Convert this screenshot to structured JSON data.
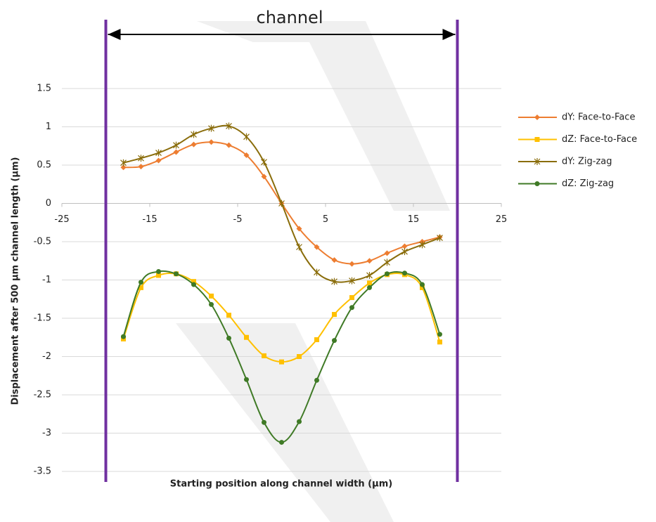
{
  "chart_data": {
    "type": "line",
    "annotation": "channel",
    "channel_bounds": [
      -20,
      20
    ],
    "channel_color": "#7030a0",
    "xlabel": "Starting position along channel width (µm)",
    "ylabel": "Displacement after 500 µm channel length (µm)",
    "x": [
      -18,
      -16,
      -14,
      -12,
      -10,
      -8,
      -6,
      -4,
      -2,
      0,
      2,
      4,
      6,
      8,
      10,
      12,
      14,
      16,
      18
    ],
    "xlim": [
      -25,
      25
    ],
    "xticks": [
      -25,
      -15,
      -5,
      5,
      15,
      25
    ],
    "ylim": [
      -3.5,
      1.5
    ],
    "yticks": [
      -3.5,
      -3,
      -2.5,
      -2,
      -1.5,
      -1,
      -0.5,
      0,
      0.5,
      1,
      1.5
    ],
    "grid": true,
    "smooth": true,
    "legend": "right",
    "series": [
      {
        "name": "dY: Face-to-Face",
        "color": "#ed7d31",
        "marker": "diamond",
        "values": [
          0.47,
          0.48,
          0.56,
          0.67,
          0.77,
          0.8,
          0.76,
          0.63,
          0.35,
          0,
          -0.33,
          -0.57,
          -0.74,
          -0.79,
          -0.75,
          -0.65,
          -0.56,
          -0.5,
          -0.44
        ]
      },
      {
        "name": "dZ: Face-to-Face",
        "color": "#ffc000",
        "marker": "square",
        "values": [
          -1.77,
          -1.1,
          -0.94,
          -0.92,
          -1.02,
          -1.21,
          -1.46,
          -1.75,
          -1.99,
          -2.07,
          -2.0,
          -1.78,
          -1.45,
          -1.23,
          -1.04,
          -0.93,
          -0.93,
          -1.1,
          -1.81
        ]
      },
      {
        "name": "dY: Zig-zag",
        "color": "#8a6d0b",
        "marker": "star",
        "values": [
          0.53,
          0.59,
          0.66,
          0.76,
          0.9,
          0.98,
          1.01,
          0.87,
          0.54,
          0,
          -0.57,
          -0.9,
          -1.02,
          -1.01,
          -0.94,
          -0.77,
          -0.63,
          -0.54,
          -0.45
        ]
      },
      {
        "name": "dZ: Zig-zag",
        "color": "#3f7a26",
        "marker": "circle",
        "values": [
          -1.74,
          -1.03,
          -0.89,
          -0.92,
          -1.06,
          -1.32,
          -1.76,
          -2.3,
          -2.86,
          -3.12,
          -2.85,
          -2.31,
          -1.79,
          -1.36,
          -1.1,
          -0.92,
          -0.91,
          -1.06,
          -1.71
        ]
      }
    ]
  }
}
